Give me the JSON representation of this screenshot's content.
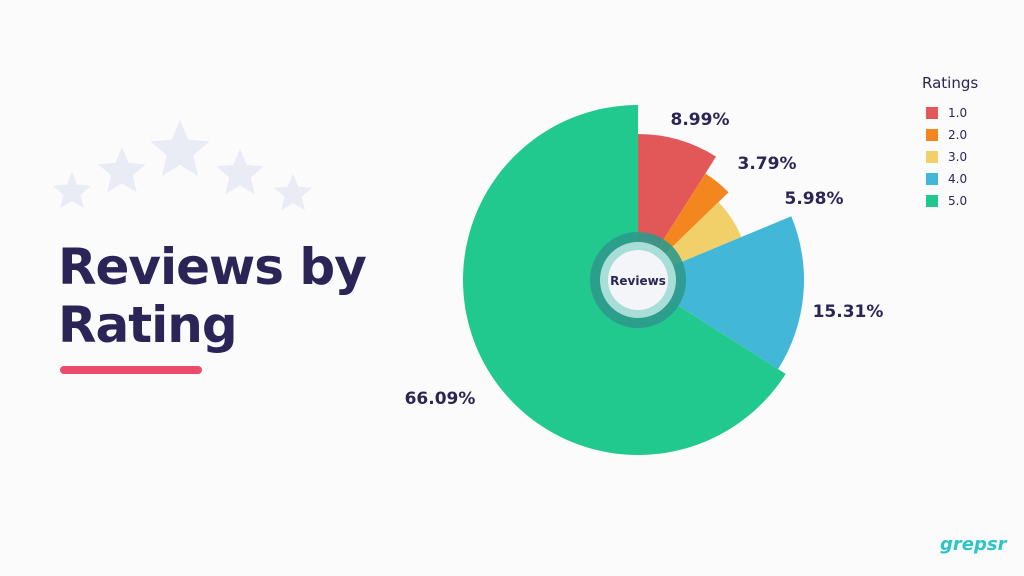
{
  "title": {
    "line1": "Reviews by",
    "line2": "Rating"
  },
  "brand": "grepsr",
  "colors": {
    "title": "#2a2556",
    "underline": "#ec4c6b",
    "stars": "#e9ebf5",
    "brand": "#2cc4c4"
  },
  "chart_data": {
    "type": "pie",
    "title": "",
    "center_label": "Reviews",
    "legend_title": "Ratings",
    "legend_position": "top-right",
    "series": [
      {
        "name": "1.0",
        "value": 8.99,
        "label": "8.99%",
        "color": "#e25858"
      },
      {
        "name": "2.0",
        "value": 3.79,
        "label": "3.79%",
        "color": "#f4861f"
      },
      {
        "name": "3.0",
        "value": 5.98,
        "label": "5.98%",
        "color": "#f1d06a"
      },
      {
        "name": "4.0",
        "value": 15.31,
        "label": "15.31%",
        "color": "#42b7d8"
      },
      {
        "name": "5.0",
        "value": 66.09,
        "label": "66.09%",
        "color": "#22c98f"
      }
    ]
  }
}
